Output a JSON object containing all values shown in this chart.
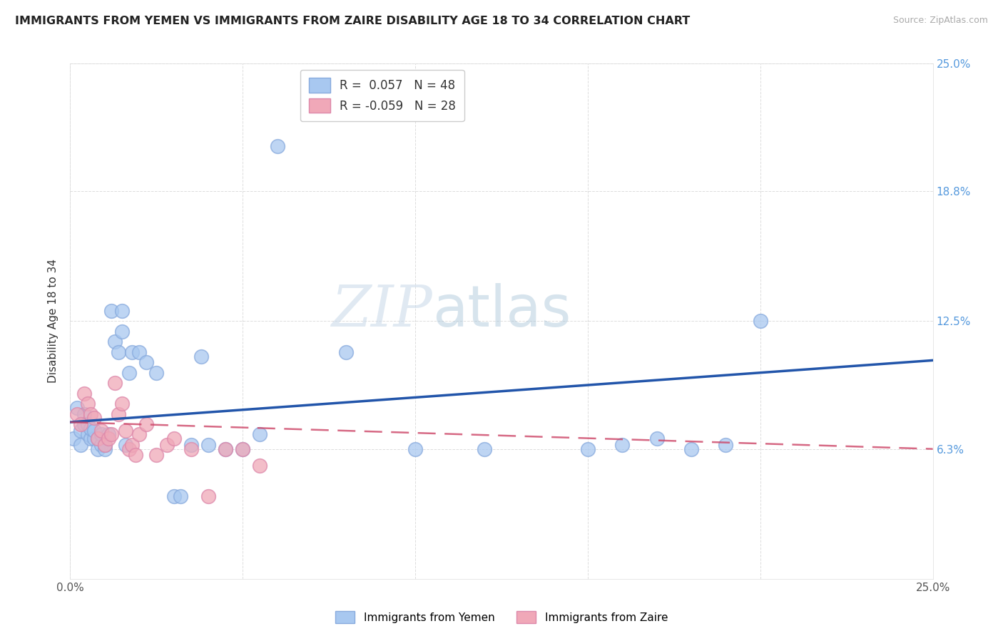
{
  "title": "IMMIGRANTS FROM YEMEN VS IMMIGRANTS FROM ZAIRE DISABILITY AGE 18 TO 34 CORRELATION CHART",
  "source": "Source: ZipAtlas.com",
  "ylabel": "Disability Age 18 to 34",
  "xlim": [
    0.0,
    0.25
  ],
  "ylim": [
    0.0,
    0.25
  ],
  "r_yemen": 0.057,
  "n_yemen": 48,
  "r_zaire": -0.059,
  "n_zaire": 28,
  "color_yemen": "#a8c8f0",
  "color_zaire": "#f0a8b8",
  "line_color_yemen": "#2255aa",
  "line_color_zaire": "#cc4466",
  "legend_label_yemen": "Immigrants from Yemen",
  "legend_label_zaire": "Immigrants from Zaire",
  "watermark_zip": "ZIP",
  "watermark_atlas": "atlas",
  "background_color": "#ffffff",
  "grid_color": "#dddddd",
  "yemen_x": [
    0.001,
    0.002,
    0.003,
    0.003,
    0.004,
    0.004,
    0.005,
    0.005,
    0.006,
    0.006,
    0.007,
    0.007,
    0.008,
    0.008,
    0.009,
    0.009,
    0.01,
    0.01,
    0.011,
    0.012,
    0.013,
    0.014,
    0.015,
    0.015,
    0.016,
    0.017,
    0.018,
    0.02,
    0.022,
    0.025,
    0.03,
    0.032,
    0.035,
    0.038,
    0.04,
    0.045,
    0.05,
    0.055,
    0.06,
    0.08,
    0.1,
    0.12,
    0.15,
    0.16,
    0.17,
    0.18,
    0.19,
    0.2
  ],
  "yemen_y": [
    0.068,
    0.083,
    0.072,
    0.065,
    0.075,
    0.08,
    0.07,
    0.075,
    0.068,
    0.073,
    0.068,
    0.072,
    0.063,
    0.068,
    0.065,
    0.07,
    0.063,
    0.065,
    0.07,
    0.13,
    0.115,
    0.11,
    0.12,
    0.13,
    0.065,
    0.1,
    0.11,
    0.11,
    0.105,
    0.1,
    0.04,
    0.04,
    0.065,
    0.108,
    0.065,
    0.063,
    0.063,
    0.07,
    0.21,
    0.11,
    0.063,
    0.063,
    0.063,
    0.065,
    0.068,
    0.063,
    0.065,
    0.125
  ],
  "zaire_x": [
    0.002,
    0.003,
    0.004,
    0.005,
    0.006,
    0.007,
    0.008,
    0.009,
    0.01,
    0.011,
    0.012,
    0.013,
    0.014,
    0.015,
    0.016,
    0.017,
    0.018,
    0.019,
    0.02,
    0.022,
    0.025,
    0.028,
    0.03,
    0.035,
    0.04,
    0.045,
    0.05,
    0.055
  ],
  "zaire_y": [
    0.08,
    0.075,
    0.09,
    0.085,
    0.08,
    0.078,
    0.068,
    0.072,
    0.065,
    0.068,
    0.07,
    0.095,
    0.08,
    0.085,
    0.072,
    0.063,
    0.065,
    0.06,
    0.07,
    0.075,
    0.06,
    0.065,
    0.068,
    0.063,
    0.04,
    0.063,
    0.063,
    0.055
  ],
  "line_yemen_x0": 0.0,
  "line_yemen_y0": 0.076,
  "line_yemen_x1": 0.25,
  "line_yemen_y1": 0.106,
  "line_zaire_x0": 0.0,
  "line_zaire_y0": 0.076,
  "line_zaire_x1": 0.25,
  "line_zaire_y1": 0.063
}
